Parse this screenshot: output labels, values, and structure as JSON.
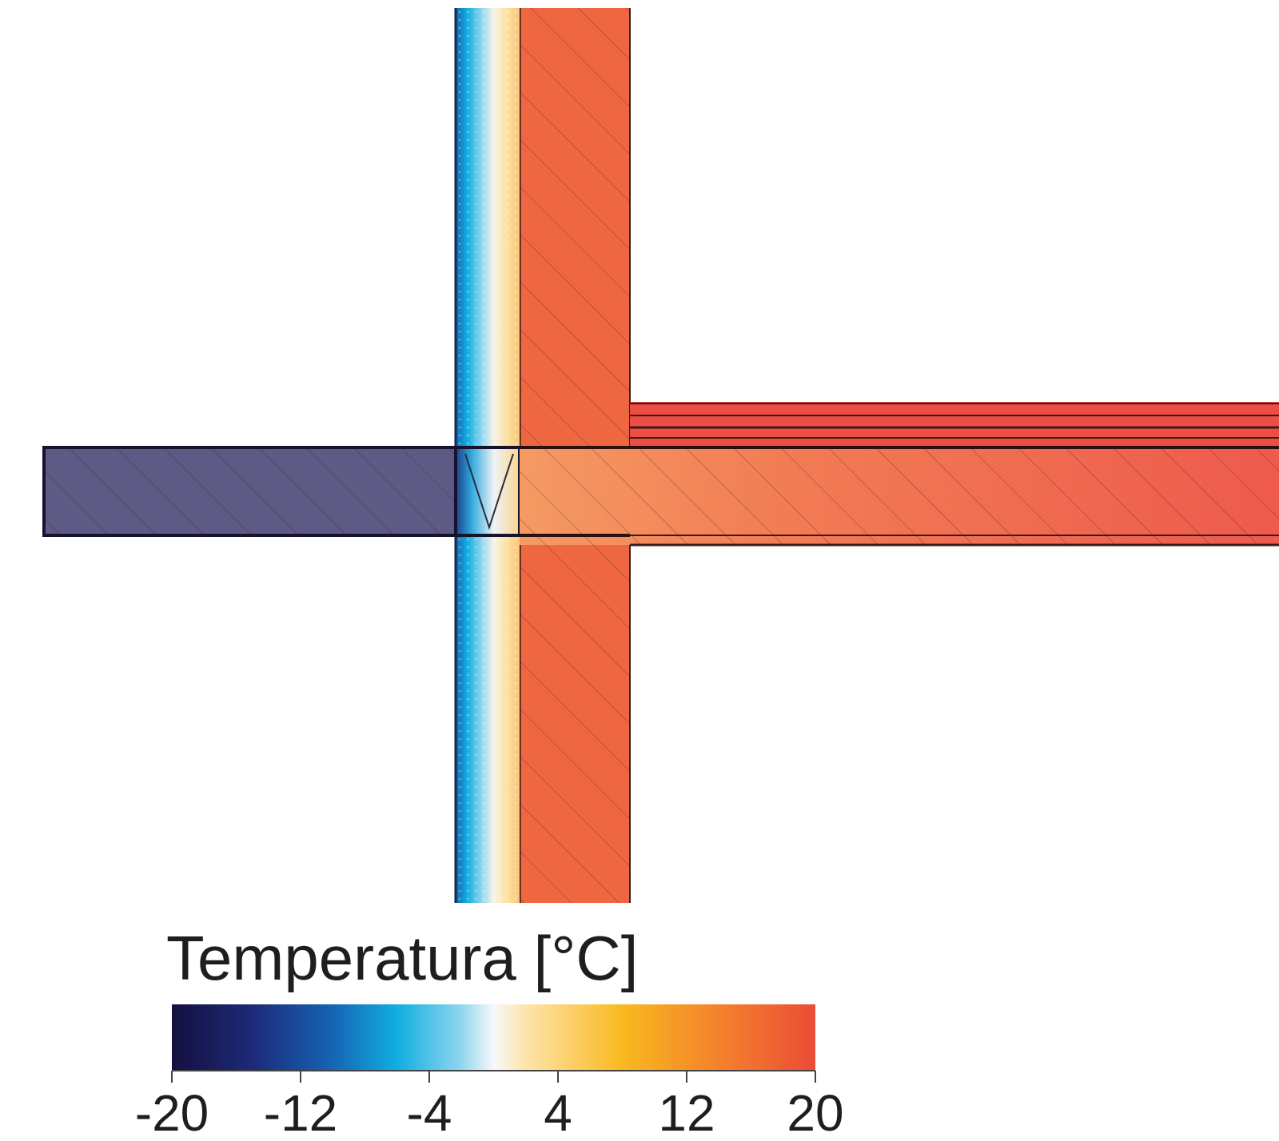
{
  "legend": {
    "title": "Temperatura [°C]",
    "ticks": [
      {
        "value": -20,
        "label": "-20"
      },
      {
        "value": -12,
        "label": "-12"
      },
      {
        "value": -4,
        "label": "-4"
      },
      {
        "value": 4,
        "label": "4"
      },
      {
        "value": 12,
        "label": "12"
      },
      {
        "value": 20,
        "label": "20"
      }
    ],
    "range": [
      -20,
      20
    ],
    "gradient_stops": [
      {
        "value": -20,
        "color": "#15103f"
      },
      {
        "value": -15,
        "color": "#1c2a78"
      },
      {
        "value": -10,
        "color": "#1565b5"
      },
      {
        "value": -6,
        "color": "#11aee0"
      },
      {
        "value": -2,
        "color": "#8fd6ee"
      },
      {
        "value": 0,
        "color": "#f7f8fb"
      },
      {
        "value": 2,
        "color": "#fde4aa"
      },
      {
        "value": 8,
        "color": "#f9b91f"
      },
      {
        "value": 14,
        "color": "#f4822c"
      },
      {
        "value": 20,
        "color": "#ea4c37"
      }
    ]
  },
  "regions": {
    "outside_slab_color": "#5d5b86",
    "inner_wall_color": "#ef6740",
    "inside_slab_color": "#ef5b4e",
    "floor_layers_color": "#ec4d44"
  }
}
